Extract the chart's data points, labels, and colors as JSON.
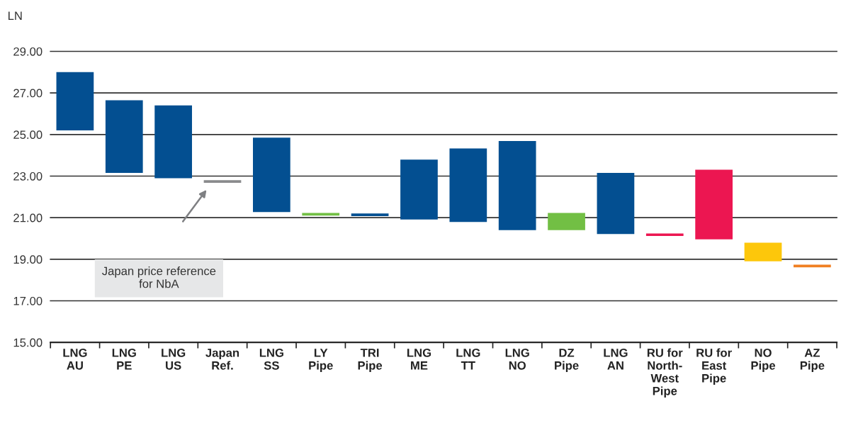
{
  "chart_data": {
    "type": "bar",
    "ylabel": "LN",
    "categories": [
      "LNG\nAU",
      "LNG\nPE",
      "LNG\nUS",
      "Japan\nRef.",
      "LNG\nSS",
      "LY\nPipe",
      "TRI\nPipe",
      "LNG\nME",
      "LNG\nTT",
      "LNG\nNO",
      "DZ\nPipe",
      "LNG\nAN",
      "RU for\nNorth-\nWest\nPipe",
      "RU for\nEast\nPipe",
      "NO\nPipe",
      "AZ\nPipe"
    ],
    "base": [
      25.2,
      23.15,
      22.9,
      22.68,
      21.27,
      21.1,
      21.07,
      20.91,
      20.79,
      20.4,
      20.4,
      20.21,
      20.12,
      19.96,
      18.9,
      18.61
    ],
    "values": [
      2.8,
      3.5,
      3.5,
      0.12,
      3.58,
      0.13,
      0.13,
      2.88,
      3.54,
      4.29,
      0.83,
      2.94,
      0.12,
      3.35,
      0.9,
      0.13
    ],
    "colors": [
      "#034f91",
      "#034f91",
      "#034f91",
      "#8a8b8d",
      "#034f91",
      "#72bf44",
      "#034f91",
      "#034f91",
      "#034f91",
      "#034f91",
      "#72bf44",
      "#034f91",
      "#ec1651",
      "#ec1651",
      "#fdc70b",
      "#f07f22"
    ],
    "ylim": [
      15,
      29
    ],
    "yticks": [
      {
        "value": 15,
        "label": "15.00"
      },
      {
        "value": 17,
        "label": "17.00"
      },
      {
        "value": 19,
        "label": "19.00"
      },
      {
        "value": 21,
        "label": "21.00"
      },
      {
        "value": 23,
        "label": "23.00"
      },
      {
        "value": 25,
        "label": "25.00"
      },
      {
        "value": 27,
        "label": "27.00"
      },
      {
        "value": 29,
        "label": "29.00"
      }
    ],
    "grid": "y",
    "annotations": [
      "Japan price reference\nfor NbA"
    ]
  }
}
